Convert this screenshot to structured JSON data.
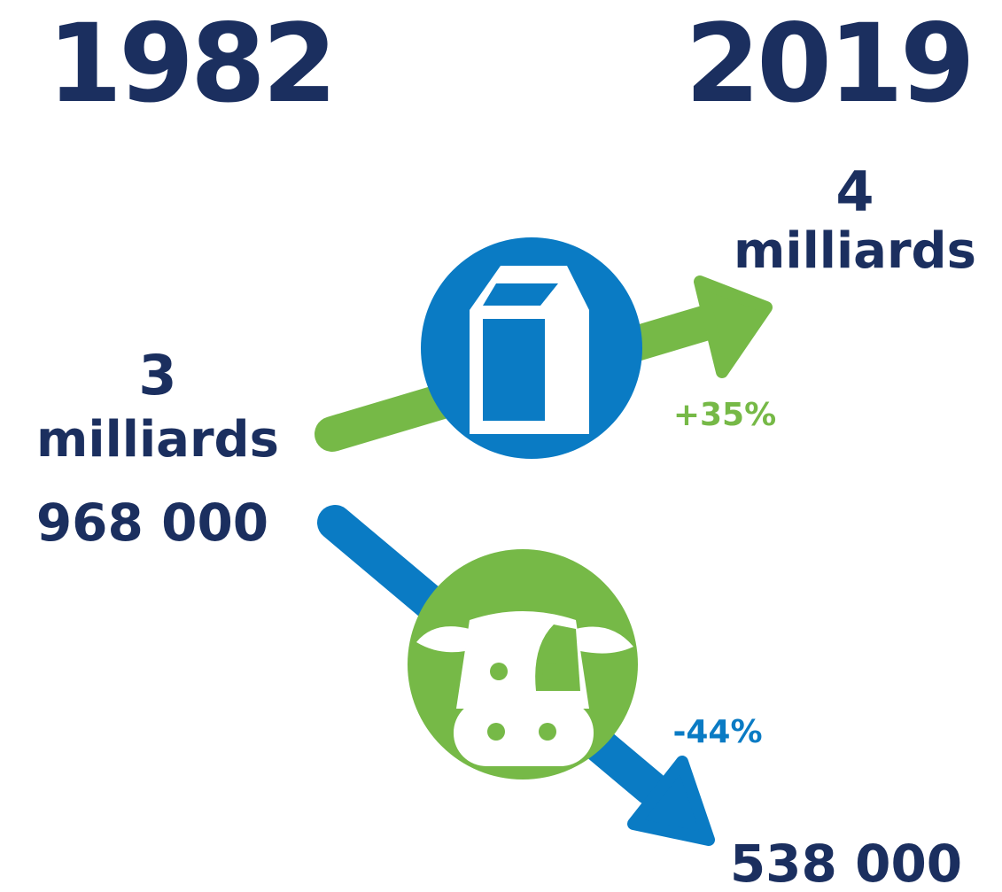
{
  "years": {
    "start": "1982",
    "end": "2019"
  },
  "milk": {
    "from": [
      "3",
      "milliards"
    ],
    "to": [
      "4",
      "milliards"
    ],
    "change": "+35%"
  },
  "cows": {
    "from": "968 000",
    "to": "538 000",
    "change": "-44%"
  }
}
